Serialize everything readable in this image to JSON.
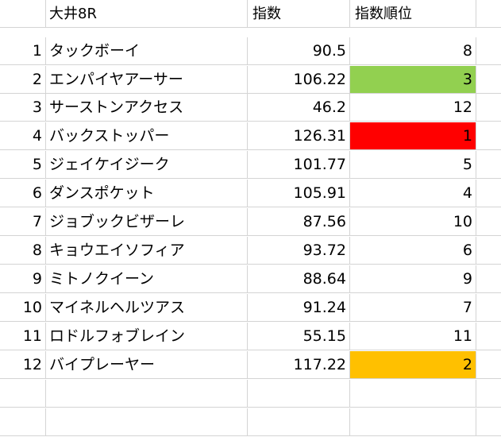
{
  "sheet": {
    "header": {
      "race": "大井8R",
      "index_label": "指数",
      "rank_label": "指数順位"
    },
    "rows": [
      {
        "num": "1",
        "name": "タックボーイ",
        "index": "90.5",
        "rank": "8"
      },
      {
        "num": "2",
        "name": "エンパイヤアーサー",
        "index": "106.22",
        "rank": "3"
      },
      {
        "num": "3",
        "name": "サーストンアクセス",
        "index": "46.2",
        "rank": "12"
      },
      {
        "num": "4",
        "name": "バックストッパー",
        "index": "126.31",
        "rank": "1"
      },
      {
        "num": "5",
        "name": "ジェイケイジーク",
        "index": "101.77",
        "rank": "5"
      },
      {
        "num": "6",
        "name": "ダンスポケット",
        "index": "105.91",
        "rank": "4"
      },
      {
        "num": "7",
        "name": "ジョブックビザーレ",
        "index": "87.56",
        "rank": "10"
      },
      {
        "num": "8",
        "name": "キョウエイソフィア",
        "index": "93.72",
        "rank": "6"
      },
      {
        "num": "9",
        "name": "ミトノクイーン",
        "index": "88.64",
        "rank": "9"
      },
      {
        "num": "10",
        "name": "マイネルヘルツアス",
        "index": "91.24",
        "rank": "7"
      },
      {
        "num": "11",
        "name": "ロドルフォブレイン",
        "index": "55.15",
        "rank": "11"
      },
      {
        "num": "12",
        "name": "バイプレーヤー",
        "index": "117.22",
        "rank": "2"
      }
    ],
    "rank_colors": {
      "1": "#ff0000",
      "2": "#ffc000",
      "3": "#92d050"
    }
  }
}
